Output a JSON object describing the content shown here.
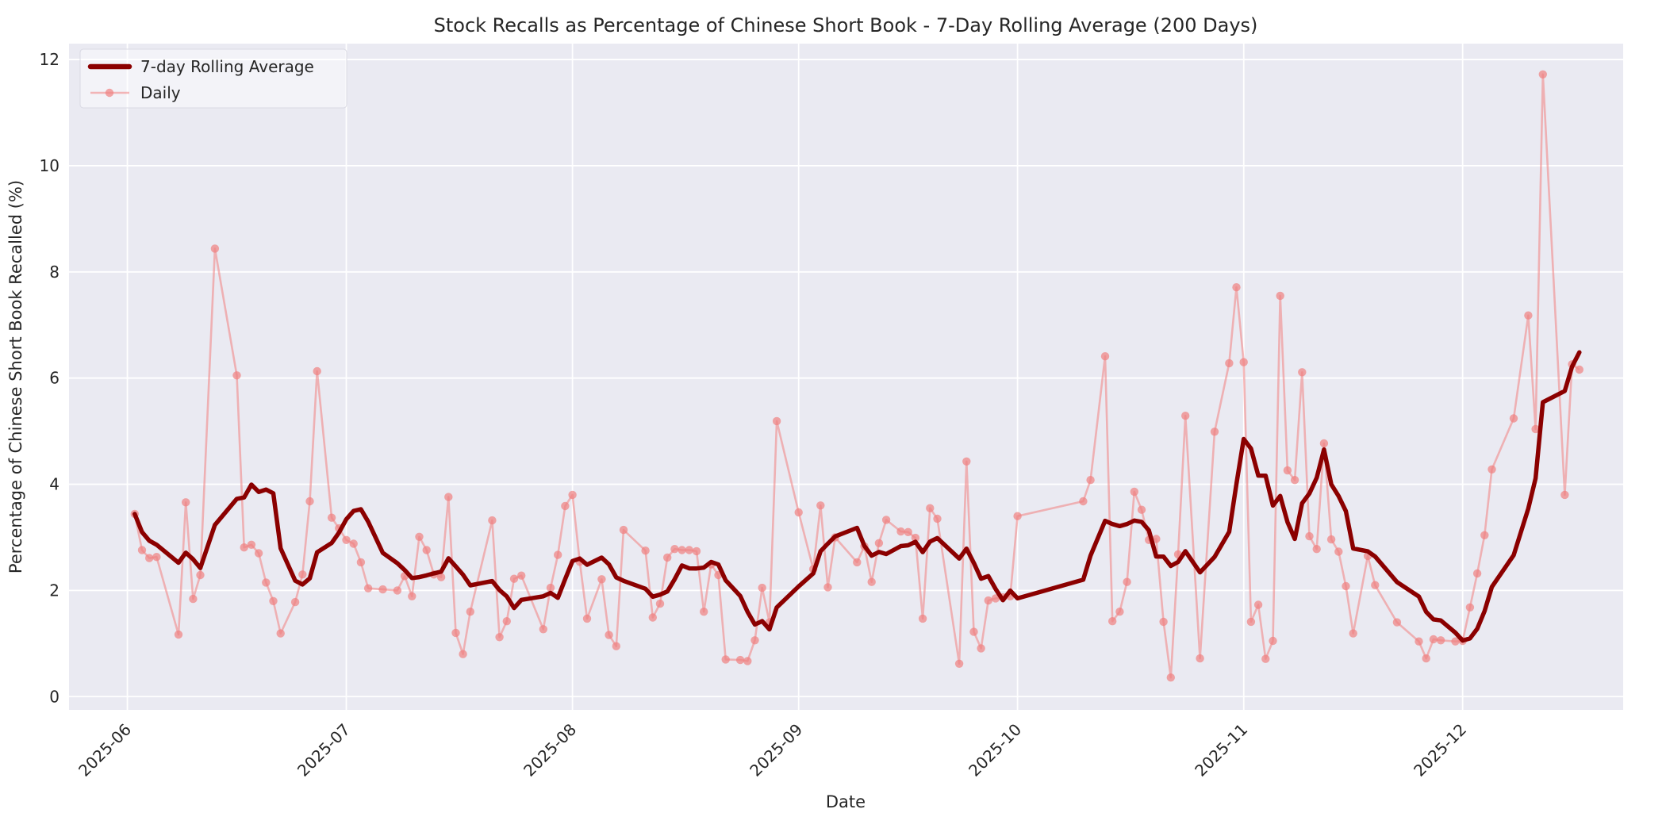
{
  "title": "Stock Recalls as Percentage of Chinese Short Book - 7-Day Rolling Average (200 Days)",
  "axes": {
    "xlabel": "Date",
    "ylabel": "Percentage of Chinese Short Book Recalled (%)",
    "y_ticks": [
      0,
      2,
      4,
      6,
      8,
      10,
      12
    ],
    "x_tick_labels": [
      "2025-06",
      "2025-07",
      "2025-08",
      "2025-09",
      "2025-10",
      "2025-11",
      "2025-12"
    ]
  },
  "legend": {
    "items": [
      {
        "label": "7-day Rolling Average",
        "series": "rolling"
      },
      {
        "label": "Daily",
        "series": "daily"
      }
    ]
  },
  "colors": {
    "figure_bg": "#ffffff",
    "axes_bg": "#eaeaf2",
    "grid": "#ffffff",
    "rolling": "#8b0000",
    "daily": "#f08080",
    "daily_line_alpha": 0.55,
    "daily_marker_alpha": 0.7,
    "text": "#262626",
    "legend_face": "rgba(255,255,255,0.45)",
    "legend_edge": "#d9d9e3"
  },
  "chart_data": {
    "type": "line",
    "title": "Stock Recalls as Percentage of Chinese Short Book - 7-Day Rolling Average (200 Days)",
    "xlabel": "Date",
    "ylabel": "Percentage of Chinese Short Book Recalled (%)",
    "grid": true,
    "legend_position": "upper left",
    "ylim": [
      -0.25,
      12.3
    ],
    "xlim": [
      "2025-05-24",
      "2025-12-23"
    ],
    "y_ticks": [
      0,
      2,
      4,
      6,
      8,
      10,
      12
    ],
    "month_ticks": [
      "2025-06-01",
      "2025-07-01",
      "2025-08-01",
      "2025-09-01",
      "2025-10-01",
      "2025-11-01",
      "2025-12-01"
    ],
    "month_tick_labels": [
      "2025-06",
      "2025-07",
      "2025-08",
      "2025-09",
      "2025-10",
      "2025-11",
      "2025-12"
    ],
    "rolling_window": 7,
    "rolling_min_periods": 1,
    "series": [
      {
        "name": "7-day Rolling Average",
        "derived_from": "Daily",
        "note": "7-point rolling mean of Daily values (min_periods=1)"
      },
      {
        "name": "Daily",
        "points": [
          [
            "2025-06-02",
            3.44
          ],
          [
            "2025-06-03",
            2.76
          ],
          [
            "2025-06-04",
            2.61
          ],
          [
            "2025-06-05",
            2.63
          ],
          [
            "2025-06-08",
            1.17
          ],
          [
            "2025-06-09",
            3.66
          ],
          [
            "2025-06-10",
            1.84
          ],
          [
            "2025-06-11",
            2.29
          ],
          [
            "2025-06-13",
            8.44
          ],
          [
            "2025-06-16",
            6.05
          ],
          [
            "2025-06-17",
            2.81
          ],
          [
            "2025-06-18",
            2.86
          ],
          [
            "2025-06-19",
            2.7
          ],
          [
            "2025-06-20",
            2.15
          ],
          [
            "2025-06-21",
            1.8
          ],
          [
            "2025-06-22",
            1.19
          ],
          [
            "2025-06-24",
            1.78
          ],
          [
            "2025-06-25",
            2.3
          ],
          [
            "2025-06-26",
            3.68
          ],
          [
            "2025-06-27",
            6.13
          ],
          [
            "2025-06-29",
            3.37
          ],
          [
            "2025-06-30",
            3.17
          ],
          [
            "2025-07-01",
            2.95
          ],
          [
            "2025-07-02",
            2.88
          ],
          [
            "2025-07-03",
            2.53
          ],
          [
            "2025-07-04",
            2.04
          ],
          [
            "2025-07-06",
            2.02
          ],
          [
            "2025-07-08",
            2.0
          ],
          [
            "2025-07-09",
            2.27
          ],
          [
            "2025-07-10",
            1.89
          ],
          [
            "2025-07-11",
            3.01
          ],
          [
            "2025-07-12",
            2.76
          ],
          [
            "2025-07-13",
            2.3
          ],
          [
            "2025-07-14",
            2.25
          ],
          [
            "2025-07-15",
            3.76
          ],
          [
            "2025-07-16",
            1.2
          ],
          [
            "2025-07-17",
            0.8
          ],
          [
            "2025-07-18",
            1.6
          ],
          [
            "2025-07-21",
            3.32
          ],
          [
            "2025-07-22",
            1.12
          ],
          [
            "2025-07-23",
            1.42
          ],
          [
            "2025-07-24",
            2.22
          ],
          [
            "2025-07-25",
            2.28
          ],
          [
            "2025-07-28",
            1.27
          ],
          [
            "2025-07-29",
            2.05
          ],
          [
            "2025-07-30",
            2.67
          ],
          [
            "2025-07-31",
            3.59
          ],
          [
            "2025-08-01",
            3.8
          ],
          [
            "2025-08-02",
            2.54
          ],
          [
            "2025-08-03",
            1.47
          ],
          [
            "2025-08-05",
            2.21
          ],
          [
            "2025-08-06",
            1.16
          ],
          [
            "2025-08-07",
            0.95
          ],
          [
            "2025-08-08",
            3.14
          ],
          [
            "2025-08-11",
            2.75
          ],
          [
            "2025-08-12",
            1.49
          ],
          [
            "2025-08-13",
            1.75
          ],
          [
            "2025-08-14",
            2.62
          ],
          [
            "2025-08-15",
            2.78
          ],
          [
            "2025-08-16",
            2.76
          ],
          [
            "2025-08-17",
            2.76
          ],
          [
            "2025-08-18",
            2.74
          ],
          [
            "2025-08-19",
            1.6
          ],
          [
            "2025-08-20",
            2.49
          ],
          [
            "2025-08-21",
            2.29
          ],
          [
            "2025-08-22",
            0.7
          ],
          [
            "2025-08-24",
            0.69
          ],
          [
            "2025-08-25",
            0.67
          ],
          [
            "2025-08-26",
            1.06
          ],
          [
            "2025-08-27",
            2.05
          ],
          [
            "2025-08-28",
            1.4
          ],
          [
            "2025-08-29",
            5.19
          ],
          [
            "2025-09-01",
            3.47
          ],
          [
            "2025-09-03",
            2.4
          ],
          [
            "2025-09-04",
            3.6
          ],
          [
            "2025-09-05",
            2.06
          ],
          [
            "2025-09-06",
            3.0
          ],
          [
            "2025-09-09",
            2.53
          ],
          [
            "2025-09-10",
            2.83
          ],
          [
            "2025-09-11",
            2.16
          ],
          [
            "2025-09-12",
            2.89
          ],
          [
            "2025-09-13",
            3.33
          ],
          [
            "2025-09-15",
            3.11
          ],
          [
            "2025-09-16",
            3.1
          ],
          [
            "2025-09-17",
            2.99
          ],
          [
            "2025-09-18",
            1.47
          ],
          [
            "2025-09-19",
            3.55
          ],
          [
            "2025-09-20",
            3.35
          ],
          [
            "2025-09-23",
            0.62
          ],
          [
            "2025-09-24",
            4.43
          ],
          [
            "2025-09-25",
            1.22
          ],
          [
            "2025-09-26",
            0.91
          ],
          [
            "2025-09-27",
            1.81
          ],
          [
            "2025-09-28",
            1.85
          ],
          [
            "2025-09-29",
            1.87
          ],
          [
            "2025-09-30",
            1.89
          ],
          [
            "2025-10-01",
            3.4
          ],
          [
            "2025-10-10",
            3.68
          ],
          [
            "2025-10-11",
            4.08
          ],
          [
            "2025-10-13",
            6.41
          ],
          [
            "2025-10-14",
            1.42
          ],
          [
            "2025-10-15",
            1.6
          ],
          [
            "2025-10-16",
            2.16
          ],
          [
            "2025-10-17",
            3.86
          ],
          [
            "2025-10-18",
            3.52
          ],
          [
            "2025-10-19",
            2.95
          ],
          [
            "2025-10-20",
            2.97
          ],
          [
            "2025-10-21",
            1.41
          ],
          [
            "2025-10-22",
            0.36
          ],
          [
            "2025-10-23",
            2.68
          ],
          [
            "2025-10-24",
            5.29
          ],
          [
            "2025-10-26",
            0.72
          ],
          [
            "2025-10-28",
            4.99
          ],
          [
            "2025-10-30",
            6.28
          ],
          [
            "2025-10-31",
            7.71
          ],
          [
            "2025-11-01",
            6.3
          ],
          [
            "2025-11-02",
            1.41
          ],
          [
            "2025-11-03",
            1.73
          ],
          [
            "2025-11-04",
            0.71
          ],
          [
            "2025-11-05",
            1.05
          ],
          [
            "2025-11-06",
            7.55
          ],
          [
            "2025-11-07",
            4.26
          ],
          [
            "2025-11-08",
            4.08
          ],
          [
            "2025-11-09",
            6.11
          ],
          [
            "2025-11-10",
            3.02
          ],
          [
            "2025-11-11",
            2.78
          ],
          [
            "2025-11-12",
            4.77
          ],
          [
            "2025-11-13",
            2.96
          ],
          [
            "2025-11-14",
            2.73
          ],
          [
            "2025-11-15",
            2.08
          ],
          [
            "2025-11-16",
            1.19
          ],
          [
            "2025-11-18",
            2.65
          ],
          [
            "2025-11-19",
            2.1
          ],
          [
            "2025-11-22",
            1.4
          ],
          [
            "2025-11-25",
            1.04
          ],
          [
            "2025-11-26",
            0.72
          ],
          [
            "2025-11-27",
            1.08
          ],
          [
            "2025-11-28",
            1.06
          ],
          [
            "2025-11-30",
            1.04
          ],
          [
            "2025-12-01",
            1.05
          ],
          [
            "2025-12-02",
            1.68
          ],
          [
            "2025-12-03",
            2.32
          ],
          [
            "2025-12-04",
            3.04
          ],
          [
            "2025-12-05",
            4.28
          ],
          [
            "2025-12-08",
            5.24
          ],
          [
            "2025-12-10",
            7.18
          ],
          [
            "2025-12-11",
            5.04
          ],
          [
            "2025-12-12",
            11.72
          ],
          [
            "2025-12-15",
            3.8
          ],
          [
            "2025-12-16",
            6.26
          ],
          [
            "2025-12-17",
            6.16
          ]
        ]
      }
    ]
  }
}
